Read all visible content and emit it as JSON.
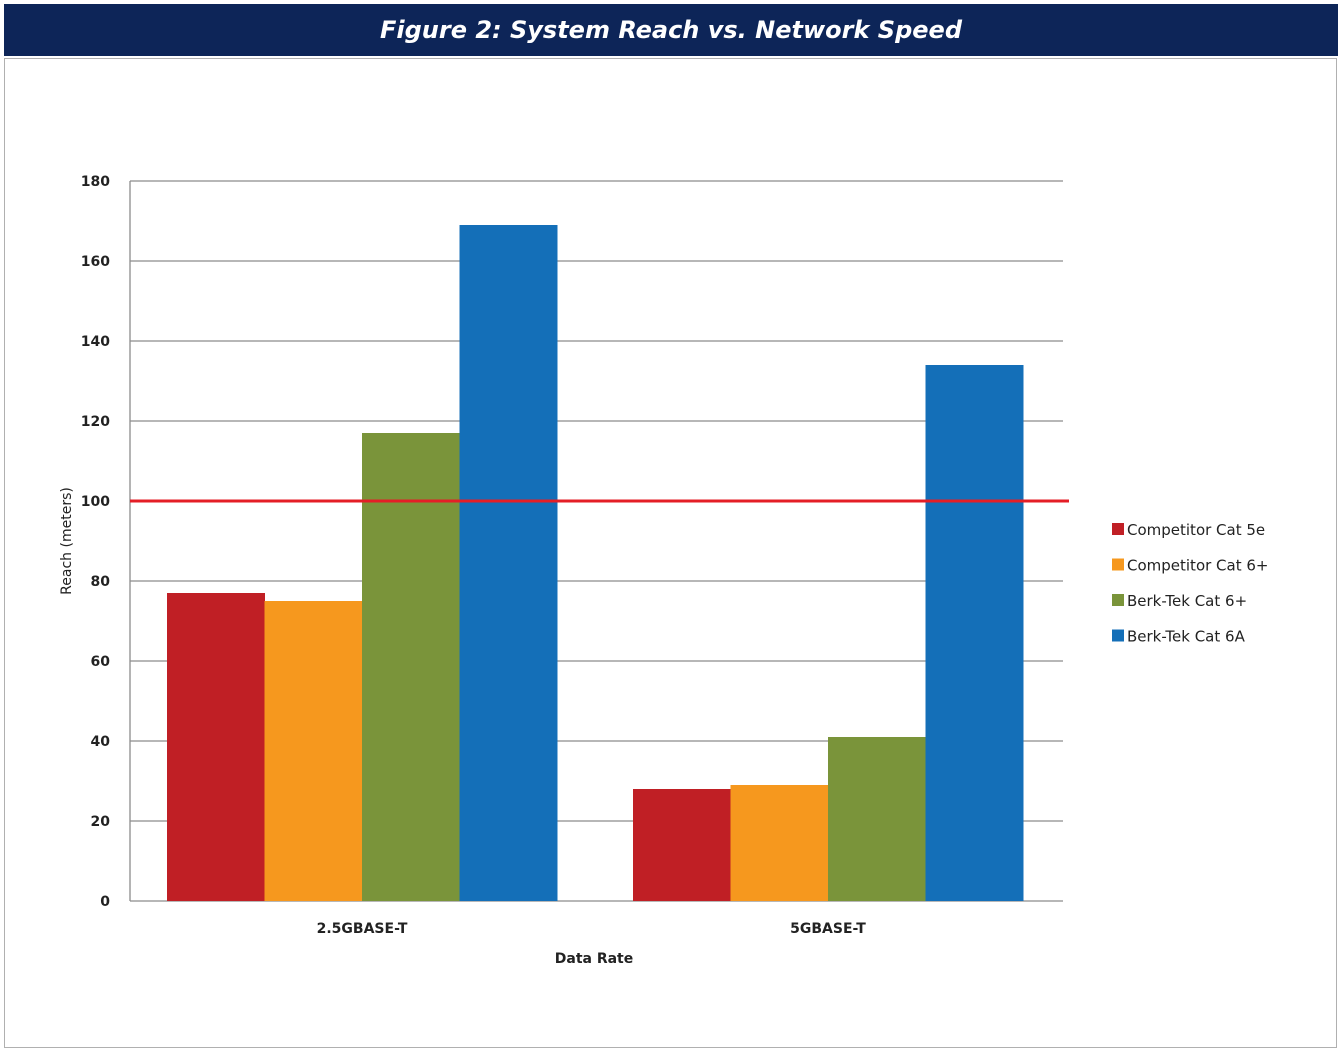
{
  "header": {
    "title": "Figure 2: System Reach vs. Network Speed"
  },
  "colors": {
    "header_bg": "#0d2558",
    "threshold_line": "#e41e26",
    "grid": "#8c8c8c"
  },
  "chart_data": {
    "type": "bar",
    "categories": [
      "2.5GBASE-T",
      "5GBASE-T"
    ],
    "series": [
      {
        "name": "Competitor Cat 5e",
        "color": "#c01f25",
        "values": [
          77,
          28
        ]
      },
      {
        "name": "Competitor Cat 6+",
        "color": "#f6981e",
        "values": [
          75,
          29
        ]
      },
      {
        "name": "Berk-Tek Cat 6+",
        "color": "#7a943a",
        "values": [
          117,
          41
        ]
      },
      {
        "name": "Berk-Tek Cat 6A",
        "color": "#146fb8",
        "values": [
          169,
          134
        ]
      }
    ],
    "reference_line": {
      "value": 100
    },
    "xlabel": "Data Rate",
    "ylabel": "Reach (meters)",
    "ylim": [
      0,
      180
    ],
    "yticks": [
      0,
      20,
      40,
      60,
      80,
      100,
      120,
      140,
      160,
      180
    ],
    "grid": true,
    "legend": "right"
  }
}
